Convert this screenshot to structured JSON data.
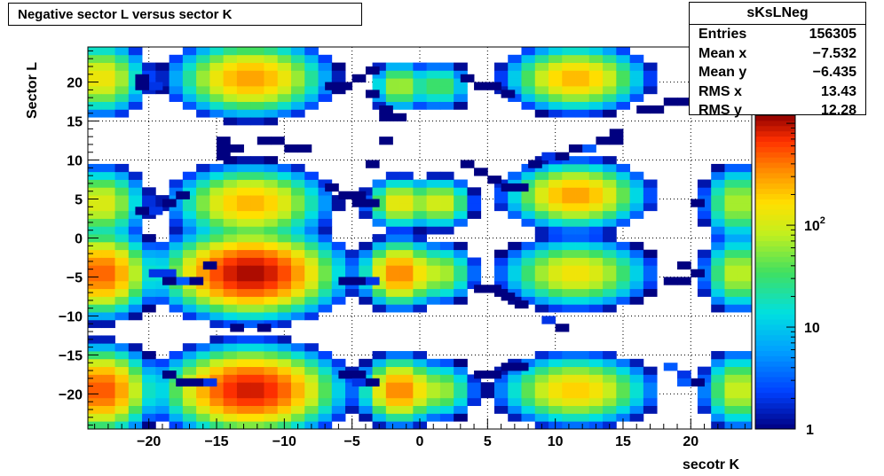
{
  "chart_data": {
    "type": "heatmap",
    "title": "Negative sector L versus sector K",
    "xlabel": "secotr K",
    "ylabel": "Sector L",
    "xlim": [
      -24.5,
      24.5
    ],
    "ylim": [
      -24.5,
      24.5
    ],
    "xticks": [
      -20,
      -15,
      -10,
      -5,
      0,
      5,
      10,
      15,
      20
    ],
    "yticks": [
      -20,
      -15,
      -10,
      -5,
      0,
      5,
      10,
      15,
      20
    ],
    "grid": true,
    "z_scale": "log",
    "zlim": [
      1,
      1200
    ],
    "colorbar_ticks": [
      "1",
      "10",
      "10^2"
    ],
    "bin_width": 1,
    "stats": {
      "name": "sKsLNeg",
      "entries_label": "Entries",
      "entries": "156305",
      "mean_x_label": "Mean x",
      "mean_x": "−7.532",
      "mean_y_label": "Mean y",
      "mean_y": "−6.435",
      "rms_x_label": "RMS x",
      "rms_x": "13.43",
      "rms_y_label": "RMS y",
      "rms_y": "12.28"
    },
    "blobs": [
      {
        "cx": -12.5,
        "cy": -4.5,
        "sx": 2.2,
        "sy": 1.9,
        "peak": 1100
      },
      {
        "cx": -12.5,
        "cy": -19.5,
        "sx": 2.2,
        "sy": 1.9,
        "peak": 900
      },
      {
        "cx": -23.5,
        "cy": -4.5,
        "sx": 1.3,
        "sy": 1.9,
        "peak": 500
      },
      {
        "cx": -23.5,
        "cy": -19.5,
        "sx": 1.3,
        "sy": 1.9,
        "peak": 550
      },
      {
        "cx": -12.5,
        "cy": 20.5,
        "sx": 2.0,
        "sy": 1.7,
        "peak": 300
      },
      {
        "cx": -12.5,
        "cy": 4.5,
        "sx": 2.0,
        "sy": 1.7,
        "peak": 250
      },
      {
        "cx": -23.5,
        "cy": 20.5,
        "sx": 1.2,
        "sy": 1.7,
        "peak": 150
      },
      {
        "cx": -23.5,
        "cy": 4.5,
        "sx": 1.2,
        "sy": 1.7,
        "peak": 120
      },
      {
        "cx": 11.5,
        "cy": 20.5,
        "sx": 1.8,
        "sy": 1.5,
        "peak": 250
      },
      {
        "cx": 11.5,
        "cy": 5.5,
        "sx": 1.8,
        "sy": 1.5,
        "peak": 300
      },
      {
        "cx": 11.5,
        "cy": -4.5,
        "sx": 2.0,
        "sy": 1.6,
        "peak": 150
      },
      {
        "cx": 11.5,
        "cy": -19.5,
        "sx": 2.0,
        "sy": 1.6,
        "peak": 200
      },
      {
        "cx": 23.5,
        "cy": 4.5,
        "sx": 1.0,
        "sy": 1.8,
        "peak": 80
      },
      {
        "cx": 23.5,
        "cy": -4.5,
        "sx": 1.0,
        "sy": 1.8,
        "peak": 90
      },
      {
        "cx": 23.5,
        "cy": -19.5,
        "sx": 1.0,
        "sy": 1.8,
        "peak": 100
      },
      {
        "cx": -1.5,
        "cy": -4.5,
        "sx": 1.0,
        "sy": 1.5,
        "peak": 400
      },
      {
        "cx": -1.5,
        "cy": -19.5,
        "sx": 1.0,
        "sy": 1.5,
        "peak": 400
      },
      {
        "cx": -1.5,
        "cy": 4.5,
        "sx": 0.9,
        "sy": 1.2,
        "peak": 150
      },
      {
        "cx": -1.5,
        "cy": 19.5,
        "sx": 0.8,
        "sy": 1.2,
        "peak": 80
      },
      {
        "cx": 1.5,
        "cy": 19.5,
        "sx": 0.9,
        "sy": 1.2,
        "peak": 40
      },
      {
        "cx": 1.5,
        "cy": 4.5,
        "sx": 0.9,
        "sy": 1.2,
        "peak": 120
      },
      {
        "cx": 1.5,
        "cy": -4.5,
        "sx": 1.0,
        "sy": 1.4,
        "peak": 80
      },
      {
        "cx": 1.5,
        "cy": -19.5,
        "sx": 1.0,
        "sy": 1.4,
        "peak": 70
      }
    ],
    "sparse_bins": [
      [
        -18.5,
        -4.5,
        2
      ],
      [
        -17.5,
        -5.5,
        3
      ],
      [
        -18.5,
        -5.5,
        1
      ],
      [
        -19.5,
        -4.5,
        2
      ],
      [
        -16.5,
        -5.5,
        1
      ],
      [
        -20.5,
        20.5,
        1
      ],
      [
        -19.5,
        19.5,
        2
      ],
      [
        -20.5,
        19.5,
        1
      ],
      [
        -19.5,
        3.5,
        2
      ],
      [
        -20.5,
        3.5,
        1
      ],
      [
        -18.5,
        4.5,
        1
      ],
      [
        -17.5,
        5.5,
        1
      ],
      [
        -15.5,
        -3.5,
        1
      ],
      [
        -15.5,
        -18.5,
        2
      ],
      [
        -16.5,
        -18.5,
        1
      ],
      [
        -17.5,
        -18.5,
        1
      ],
      [
        -18.5,
        -17.5,
        1
      ],
      [
        -14.5,
        12.5,
        1
      ],
      [
        -13.5,
        11.5,
        1
      ],
      [
        -11.5,
        12.5,
        1
      ],
      [
        -10.5,
        12.5,
        1
      ],
      [
        -9.5,
        11.5,
        1
      ],
      [
        -8.5,
        11.5,
        1
      ],
      [
        -14.5,
        10.5,
        1
      ],
      [
        -14.5,
        11.5,
        1
      ],
      [
        -13.5,
        -11.5,
        1
      ],
      [
        -11.5,
        -11.5,
        1
      ],
      [
        -6.5,
        19.5,
        1
      ],
      [
        -5.5,
        19.5,
        1
      ],
      [
        -4.5,
        20.5,
        1
      ],
      [
        -3.5,
        21.5,
        1
      ],
      [
        -3.5,
        18.5,
        1
      ],
      [
        -2.5,
        16.5,
        1
      ],
      [
        -1.5,
        15.5,
        1
      ],
      [
        -2.5,
        15.5,
        1
      ],
      [
        -2.5,
        12.5,
        1
      ],
      [
        -3.5,
        9.5,
        1
      ],
      [
        -6.5,
        6.5,
        1
      ],
      [
        -5.5,
        5.5,
        1
      ],
      [
        -4.5,
        5.5,
        1
      ],
      [
        -3.5,
        4.5,
        1
      ],
      [
        -4.5,
        4.5,
        1
      ],
      [
        -4.5,
        -5.5,
        1
      ],
      [
        -5.5,
        -5.5,
        1
      ],
      [
        -3.5,
        -5.5,
        2
      ],
      [
        -4.5,
        -17.5,
        1
      ],
      [
        -5.5,
        -17.5,
        1
      ],
      [
        -4.5,
        -18.5,
        2
      ],
      [
        -3.5,
        -18.5,
        1
      ],
      [
        3.5,
        20.5,
        1
      ],
      [
        4.5,
        19.5,
        1
      ],
      [
        5.5,
        19.5,
        1
      ],
      [
        6.5,
        18.5,
        1
      ],
      [
        3.5,
        9.5,
        1
      ],
      [
        4.5,
        8.5,
        1
      ],
      [
        5.5,
        7.5,
        1
      ],
      [
        6.5,
        6.5,
        1
      ],
      [
        7.5,
        6.5,
        1
      ],
      [
        4.5,
        -6.5,
        1
      ],
      [
        5.5,
        -6.5,
        1
      ],
      [
        6.5,
        -7.5,
        1
      ],
      [
        7.5,
        -8.5,
        1
      ],
      [
        4.5,
        -17.5,
        1
      ],
      [
        5.5,
        -17.5,
        1
      ],
      [
        6.5,
        -16.5,
        1
      ],
      [
        7.5,
        -16.5,
        1
      ],
      [
        8.5,
        9.5,
        1
      ],
      [
        9.5,
        10.5,
        2
      ],
      [
        10.5,
        10.5,
        1
      ],
      [
        11.5,
        11.5,
        1
      ],
      [
        12.5,
        11.5,
        3
      ],
      [
        13.5,
        12.5,
        1
      ],
      [
        14.5,
        12.5,
        1
      ],
      [
        14.5,
        13.5,
        1
      ],
      [
        9.5,
        -10.5,
        2
      ],
      [
        10.5,
        -11.5,
        1
      ],
      [
        16.5,
        16.5,
        1
      ],
      [
        17.5,
        16.5,
        1
      ],
      [
        18.5,
        17.5,
        1
      ],
      [
        19.5,
        17.5,
        1
      ],
      [
        20.5,
        18.5,
        1
      ],
      [
        18.5,
        -5.5,
        1
      ],
      [
        19.5,
        -5.5,
        1
      ],
      [
        20.5,
        -4.5,
        1
      ],
      [
        19.5,
        -3.5,
        1
      ],
      [
        18.5,
        -16.5,
        3
      ],
      [
        19.5,
        -17.5,
        2
      ],
      [
        20.5,
        -18.5,
        1
      ],
      [
        19.5,
        -18.5,
        3
      ],
      [
        20.5,
        4.5,
        1
      ]
    ]
  }
}
